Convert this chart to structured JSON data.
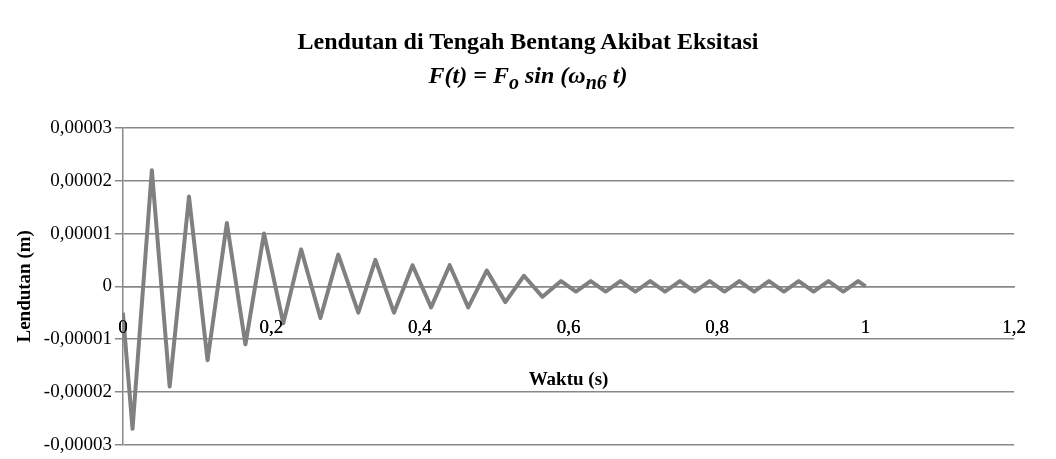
{
  "chart_data": {
    "type": "line",
    "title": "Lendutan di Tengah Bentang Akibat Eksitasi",
    "subtitle": "F(t) = F$_{o}$ sin (ω$_{n6}$ t)",
    "xlabel": "Waktu (s)",
    "ylabel": "Lendutan (m)",
    "x": [
      0,
      0.013,
      0.039,
      0.063,
      0.089,
      0.114,
      0.14,
      0.165,
      0.19,
      0.216,
      0.24,
      0.266,
      0.29,
      0.317,
      0.34,
      0.365,
      0.39,
      0.415,
      0.44,
      0.465,
      0.49,
      0.515,
      0.54,
      0.565,
      0.59,
      0.61,
      0.63,
      0.65,
      0.67,
      0.69,
      0.71,
      0.73,
      0.75,
      0.77,
      0.79,
      0.81,
      0.83,
      0.85,
      0.87,
      0.89,
      0.91,
      0.93,
      0.95,
      0.97,
      0.99,
      1
    ],
    "series": [
      {
        "color": "#808080",
        "values": [
          -5e-06,
          -2.7e-05,
          2.2e-05,
          -1.9e-05,
          1.7e-05,
          -1.4e-05,
          1.2e-05,
          -1.1e-05,
          1e-05,
          -7e-06,
          7e-06,
          -6e-06,
          6e-06,
          -5e-06,
          5e-06,
          -5e-06,
          4e-06,
          -4e-06,
          4e-06,
          -4e-06,
          3e-06,
          -3e-06,
          2e-06,
          -2e-06,
          1e-06,
          -1e-06,
          1e-06,
          -1e-06,
          1e-06,
          -1e-06,
          1e-06,
          -1e-06,
          1e-06,
          -1e-06,
          1e-06,
          -1e-06,
          1e-06,
          -1e-06,
          1e-06,
          -1e-06,
          1e-06,
          -1e-06,
          1e-06,
          -1e-06,
          1e-06,
          0
        ]
      }
    ],
    "xlim": [
      0,
      1.2
    ],
    "xticks": [
      0,
      {
        "value": 0.2,
        "label": "0,2"
      },
      {
        "value": 0.4,
        "label": "0,4"
      },
      {
        "value": 0.6,
        "label": "0,6"
      },
      {
        "value": 0.8,
        "label": "0,8"
      },
      1,
      {
        "value": 1.2,
        "label": "1,2"
      }
    ],
    "ylim": [
      -3e-05,
      3e-05
    ],
    "yticks": [
      {
        "value": -3e-05,
        "label": "-0,00003"
      },
      {
        "value": -2e-05,
        "label": "-0,00002"
      },
      {
        "value": -1e-05,
        "label": "-0,00001"
      },
      0,
      {
        "value": 1e-05,
        "label": "0,00001"
      },
      {
        "value": 2e-05,
        "label": "0,00002"
      },
      {
        "value": 3e-05,
        "label": "0,00003"
      }
    ],
    "grid": "y",
    "legend": false,
    "marker": "none",
    "line_style": "solid"
  }
}
